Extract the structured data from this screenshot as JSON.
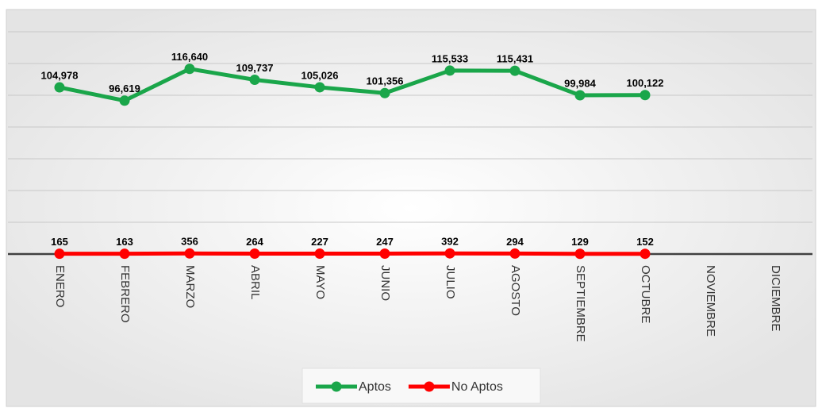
{
  "chart_data": {
    "type": "line",
    "categories": [
      "ENERO",
      "FEBRERO",
      "MARZO",
      "ABRIL",
      "MAYO",
      "JUNIO",
      "JULIO",
      "AGOSTO",
      "SEPTIEMBRE",
      "OCTUBRE",
      "NOVIEMBRE",
      "DICIEMBRE"
    ],
    "series": [
      {
        "name": "Aptos",
        "color": "#1aa64a",
        "values": [
          104978,
          96619,
          116640,
          109737,
          105026,
          101356,
          115533,
          115431,
          99984,
          100122,
          null,
          null
        ],
        "value_labels": [
          "104,978",
          "96,619",
          "116,640",
          "109,737",
          "105,026",
          "101,356",
          "115,533",
          "115,431",
          "99,984",
          "100,122",
          null,
          null
        ]
      },
      {
        "name": "No Aptos",
        "color": "#ff0000",
        "values": [
          165,
          163,
          356,
          264,
          227,
          247,
          392,
          294,
          129,
          152,
          null,
          null
        ]
      }
    ],
    "ylim": [
      0,
      140000
    ],
    "yticks": [
      0,
      20000,
      40000,
      60000,
      80000,
      100000,
      120000,
      140000
    ],
    "grid": true,
    "legend": "bottom"
  }
}
